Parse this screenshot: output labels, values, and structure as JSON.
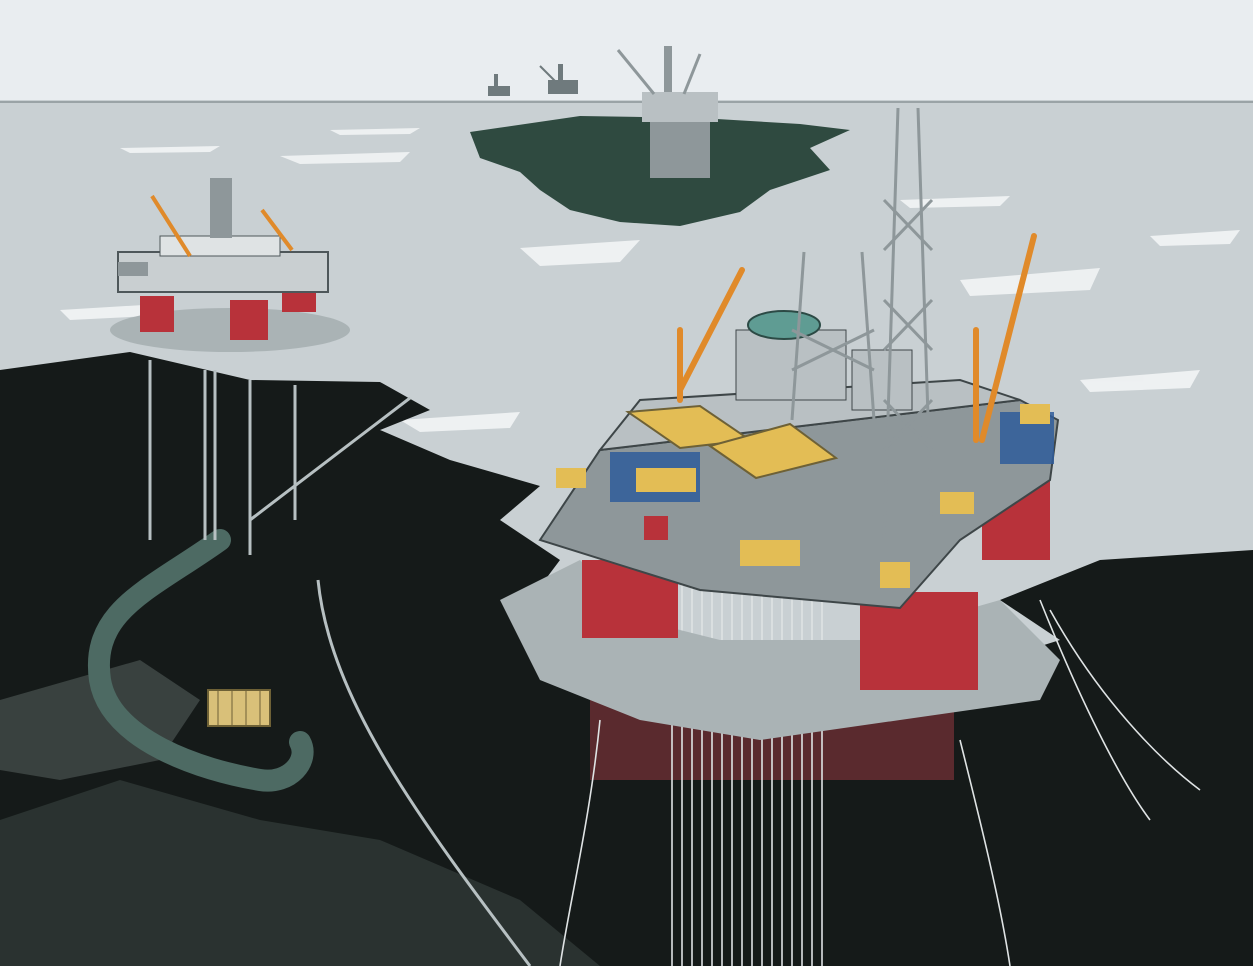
{
  "scene": {
    "subject": "offshore-oil-field-illustration",
    "colors": {
      "sky": "#e9edf0",
      "sea_surface": "#c9d0d3",
      "sea_foam": "#f2f4f5",
      "seabed_dark": "#151a19",
      "seabed_mid": "#2a3230",
      "slick_green": "#2f4a40",
      "hull_red": "#b8323a",
      "deck_yellow": "#e3bd55",
      "crane_orange": "#e08a2a",
      "steel_grey": "#8e979a",
      "deck_blue": "#2f5c9a",
      "helideck_teal": "#5f9c93",
      "riser_white": "#dfe3e4"
    },
    "objects": [
      "main-semi-submersible-platform",
      "left-semi-submersible-platform",
      "distant-gravity-platform",
      "far-horizon-rigs",
      "subsea-template",
      "seabed-pipeline-trench",
      "riser-lines",
      "drilling-derrick",
      "deck-cranes",
      "helideck"
    ]
  }
}
